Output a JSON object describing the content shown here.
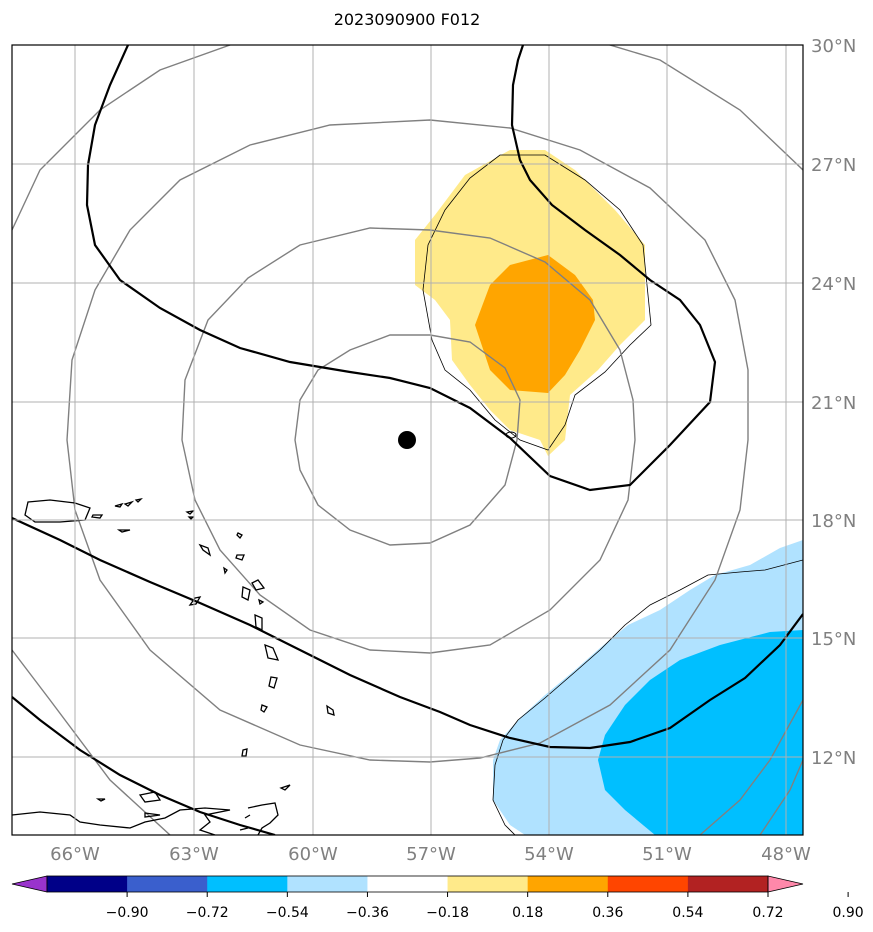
{
  "title": "2023090900 F012",
  "lat_labels": [
    "30°N",
    "27°N",
    "24°N",
    "21°N",
    "18°N",
    "15°N",
    "12°N"
  ],
  "lon_labels": [
    "66°W",
    "63°W",
    "60°W",
    "57°W",
    "54°W",
    "51°W",
    "48°W"
  ],
  "colorbar": {
    "colors": [
      "#9933cc",
      "#000088",
      "#3a5fcd",
      "#00bfff",
      "#b0e2ff",
      "#ffffff",
      "#ffea8a",
      "#ffa500",
      "#ff4500",
      "#b22222",
      "#ff88aa"
    ],
    "tick_labels": [
      "−0.90",
      "−0.72",
      "−0.54",
      "−0.36",
      "−0.18",
      "0.18",
      "0.36",
      "0.54",
      "0.72",
      "0.90"
    ]
  },
  "storm_center": {
    "lon": -57.6,
    "lat": 20.0
  },
  "map_extent": {
    "lon_min": -67.5,
    "lon_max": -47.6,
    "lat_min": 10.0,
    "lat_max": 30.0
  }
}
